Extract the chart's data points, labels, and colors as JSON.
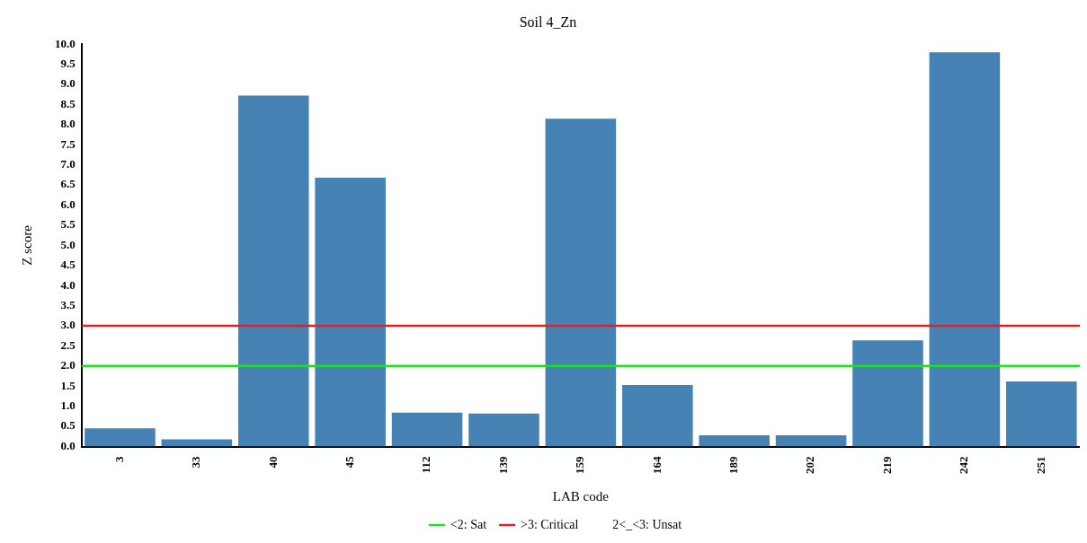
{
  "chart_data": {
    "type": "bar",
    "title": "Soil 4_Zn",
    "xlabel": "LAB code",
    "ylabel": "Z score",
    "categories": [
      "3",
      "33",
      "40",
      "45",
      "112",
      "139",
      "159",
      "164",
      "189",
      "202",
      "219",
      "242",
      "251"
    ],
    "values": [
      0.45,
      0.18,
      8.72,
      6.68,
      0.84,
      0.82,
      8.15,
      1.53,
      0.28,
      0.28,
      2.64,
      9.8,
      1.62
    ],
    "color": "#4682b4",
    "ylim": [
      0,
      10
    ],
    "yticks": [
      {
        "value": 0,
        "label": "0.0"
      },
      {
        "value": 0.5,
        "label": "0.5"
      },
      {
        "value": 1,
        "label": "1.0"
      },
      {
        "value": 1.5,
        "label": "1.5"
      },
      {
        "value": 2,
        "label": "2.0"
      },
      {
        "value": 2.5,
        "label": "2.5"
      },
      {
        "value": 3,
        "label": "3.0"
      },
      {
        "value": 3.5,
        "label": "3.5"
      },
      {
        "value": 4,
        "label": "4.0"
      },
      {
        "value": 4.5,
        "label": "4.5"
      },
      {
        "value": 5,
        "label": "5.0"
      },
      {
        "value": 5.5,
        "label": "5.5"
      },
      {
        "value": 6,
        "label": "6.0"
      },
      {
        "value": 6.5,
        "label": "6.5"
      },
      {
        "value": 7,
        "label": "7.0"
      },
      {
        "value": 7.5,
        "label": "7.5"
      },
      {
        "value": 8,
        "label": "8.0"
      },
      {
        "value": 8.5,
        "label": "8.5"
      },
      {
        "value": 9,
        "label": "9.0"
      },
      {
        "value": 9.5,
        "label": "9.5"
      },
      {
        "value": 10,
        "label": "10.0"
      }
    ],
    "ref_lines": [
      {
        "axis": "y",
        "value": 2,
        "label": "<2: Sat",
        "color": "#22dd22"
      },
      {
        "axis": "y",
        "value": 3,
        "label": ">3: Critical",
        "color": "#dd2222"
      }
    ],
    "annotations": [
      "2<_<3: Unsat"
    ],
    "legend": "bottom"
  }
}
